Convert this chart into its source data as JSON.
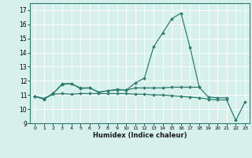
{
  "title": "",
  "xlabel": "Humidex (Indice chaleur)",
  "xlim": [
    -0.5,
    23.5
  ],
  "ylim": [
    9,
    17.5
  ],
  "yticks": [
    9,
    10,
    11,
    12,
    13,
    14,
    15,
    16,
    17
  ],
  "xticks": [
    0,
    1,
    2,
    3,
    4,
    5,
    6,
    7,
    8,
    9,
    10,
    11,
    12,
    13,
    14,
    15,
    16,
    17,
    18,
    19,
    20,
    21,
    22,
    23
  ],
  "bg_color": "#d6f0eb",
  "grid_color": "#ffffff",
  "line_color": "#2e7d6e",
  "lines": [
    [
      10.9,
      10.7,
      11.1,
      11.8,
      11.8,
      11.5,
      11.5,
      11.2,
      11.3,
      11.4,
      11.35,
      11.85,
      12.2,
      14.4,
      15.4,
      16.4,
      16.8,
      14.35,
      11.55,
      null,
      null,
      null,
      null,
      null
    ],
    [
      10.9,
      10.75,
      11.1,
      11.75,
      11.8,
      11.45,
      11.5,
      11.2,
      11.3,
      11.35,
      11.35,
      11.5,
      11.5,
      11.5,
      11.5,
      11.55,
      11.55,
      11.55,
      11.55,
      10.85,
      10.8,
      10.8,
      null,
      null
    ],
    [
      10.9,
      10.75,
      11.05,
      11.1,
      11.05,
      11.1,
      11.1,
      11.1,
      11.1,
      11.1,
      11.1,
      11.05,
      11.05,
      11.0,
      11.0,
      10.95,
      10.9,
      10.85,
      10.8,
      10.7,
      10.65,
      10.65,
      9.2,
      10.5
    ]
  ]
}
